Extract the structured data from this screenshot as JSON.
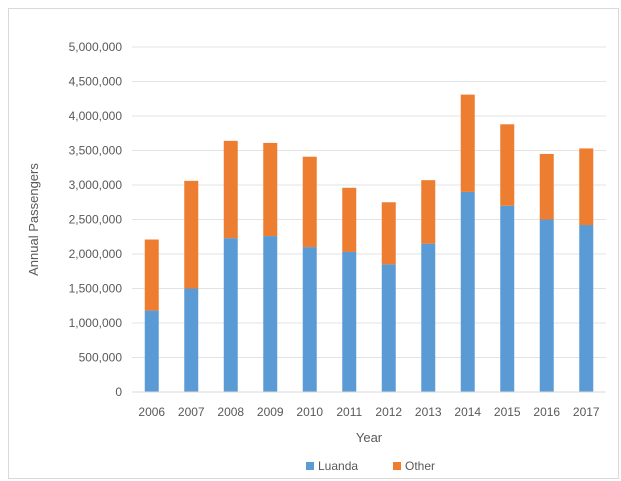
{
  "chart_data": {
    "type": "bar",
    "stacked": true,
    "title": "",
    "xlabel": "Year",
    "ylabel": "Annual Passengers",
    "ylim": [
      0,
      5000000
    ],
    "yticks": [
      0,
      500000,
      1000000,
      1500000,
      2000000,
      2500000,
      3000000,
      3500000,
      4000000,
      4500000,
      5000000
    ],
    "ytick_labels": [
      "0",
      "500,000",
      "1,000,000",
      "1,500,000",
      "2,000,000",
      "2,500,000",
      "3,000,000",
      "3,500,000",
      "4,000,000",
      "4,500,000",
      "5,000,000"
    ],
    "categories": [
      "2006",
      "2007",
      "2008",
      "2009",
      "2010",
      "2011",
      "2012",
      "2013",
      "2014",
      "2015",
      "2016",
      "2017"
    ],
    "series": [
      {
        "name": "Luanda",
        "color": "#5b9bd5",
        "values": [
          1180000,
          1500000,
          2230000,
          2260000,
          2100000,
          2030000,
          1850000,
          2150000,
          2900000,
          2700000,
          2500000,
          2420000
        ]
      },
      {
        "name": "Other",
        "color": "#ed7d31",
        "values": [
          1030000,
          1560000,
          1410000,
          1350000,
          1310000,
          930000,
          900000,
          920000,
          1410000,
          1180000,
          950000,
          1110000
        ]
      }
    ],
    "grid": true,
    "legend_position": "bottom"
  }
}
